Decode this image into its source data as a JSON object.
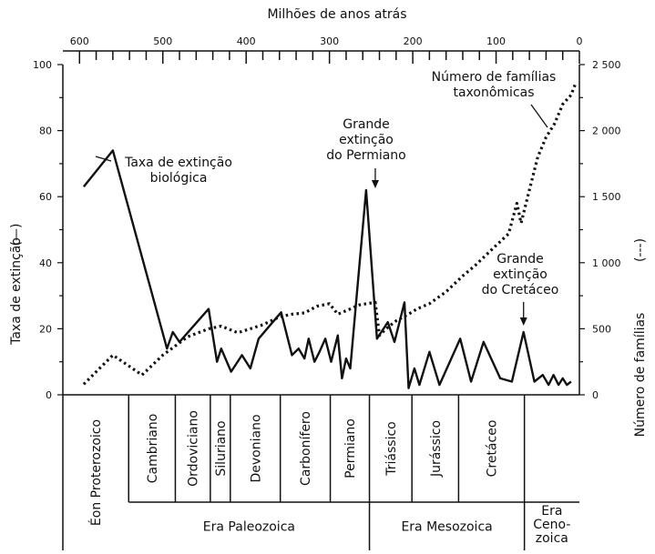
{
  "chart_data": {
    "type": "line",
    "title": "Milhões de anos atrás",
    "xlabel": "Milhões de anos atrás",
    "ylabel_left": "Taxa de extinção",
    "ylabel_left_marker": "(—)",
    "ylabel_right": "Número de famílias",
    "ylabel_right_marker": "(---)",
    "x_reversed": true,
    "xlim": [
      620,
      0
    ],
    "ylim_left": [
      0,
      100
    ],
    "ylim_right": [
      0,
      2500
    ],
    "x_ticks": [
      600,
      500,
      400,
      300,
      200,
      100,
      0
    ],
    "x_tick_labels": [
      "600",
      "500",
      "400",
      "300",
      "200",
      "100",
      "0"
    ],
    "left_ticks": [
      0,
      20,
      40,
      60,
      80,
      100
    ],
    "left_tick_labels": [
      "0",
      "20",
      "40",
      "60",
      "80",
      "100"
    ],
    "right_ticks": [
      0,
      500,
      1000,
      1500,
      2000,
      2500
    ],
    "right_tick_labels": [
      "0",
      "500",
      "1 000",
      "1 500",
      "2 000",
      "2 500"
    ],
    "grid": false,
    "series": [
      {
        "name": "Taxa de extinção biológica",
        "axis": "left",
        "style": "solid",
        "x": [
          595,
          560,
          495,
          488,
          480,
          445,
          435,
          430,
          418,
          405,
          395,
          385,
          358,
          345,
          337,
          330,
          325,
          318,
          312,
          305,
          298,
          290,
          285,
          280,
          275,
          268,
          256,
          243,
          230,
          222,
          210,
          205,
          198,
          192,
          180,
          168,
          143,
          130,
          115,
          95,
          81,
          67,
          54,
          44,
          37,
          31,
          25,
          20,
          15,
          10
        ],
        "y": [
          63,
          74,
          14,
          19,
          16,
          26,
          10,
          14,
          7,
          12,
          8,
          17,
          25,
          12,
          14,
          11,
          17,
          10,
          13,
          17,
          10,
          18,
          5,
          11,
          8,
          28,
          62,
          17,
          22,
          16,
          28,
          2,
          8,
          3,
          13,
          3,
          17,
          4,
          16,
          5,
          4,
          19,
          4,
          6,
          3,
          6,
          3,
          5,
          3,
          4
        ]
      },
      {
        "name": "Número de famílias taxonômicas",
        "axis": "right",
        "style": "dotted",
        "x": [
          595,
          560,
          525,
          500,
          470,
          445,
          430,
          410,
          380,
          360,
          345,
          330,
          315,
          300,
          290,
          275,
          265,
          255,
          245,
          240,
          232,
          220,
          205,
          195,
          180,
          160,
          140,
          125,
          100,
          85,
          75,
          70,
          60,
          50,
          40,
          30,
          20,
          10,
          5
        ],
        "y": [
          80,
          300,
          150,
          300,
          440,
          500,
          520,
          470,
          530,
          590,
          610,
          620,
          670,
          690,
          610,
          650,
          680,
          690,
          700,
          450,
          500,
          560,
          610,
          650,
          690,
          780,
          900,
          980,
          1130,
          1220,
          1450,
          1300,
          1550,
          1800,
          1950,
          2050,
          2200,
          2270,
          2350
        ]
      }
    ],
    "annotations": [
      {
        "lines": [
          "Taxa de extinção",
          "biológica"
        ]
      },
      {
        "lines": [
          "Número de famílias",
          "taxonômicas"
        ]
      },
      {
        "lines": [
          "Grande",
          "extinção",
          "do Permiano"
        ]
      },
      {
        "lines": [
          "Grande",
          "extinção",
          "do Cretáceo"
        ]
      }
    ],
    "timescale": {
      "periods": [
        {
          "name": "Éon Proterozoico",
          "from": 620,
          "to": 541
        },
        {
          "name": "Cambriano",
          "from": 541,
          "to": 485
        },
        {
          "name": "Ordoviciano",
          "from": 485,
          "to": 443
        },
        {
          "name": "Siluriano",
          "from": 443,
          "to": 419
        },
        {
          "name": "Devoniano",
          "from": 419,
          "to": 359
        },
        {
          "name": "Carbonífero",
          "from": 359,
          "to": 299
        },
        {
          "name": "Permiano",
          "from": 299,
          "to": 252
        },
        {
          "name": "Triássico",
          "from": 252,
          "to": 201
        },
        {
          "name": "Jurássico",
          "from": 201,
          "to": 145
        },
        {
          "name": "Cretáceo",
          "from": 145,
          "to": 66
        }
      ],
      "eras": [
        {
          "name": "Era Paleozoica",
          "from": 541,
          "to": 252,
          "lines": [
            "Era Paleozoica"
          ]
        },
        {
          "name": "Era Mesozoica",
          "from": 252,
          "to": 66,
          "lines": [
            "Era Mesozoica"
          ]
        },
        {
          "name": "Era Cenozoica",
          "from": 66,
          "to": 0,
          "lines": [
            "Era",
            "Ceno-",
            "zoica"
          ]
        }
      ]
    }
  }
}
